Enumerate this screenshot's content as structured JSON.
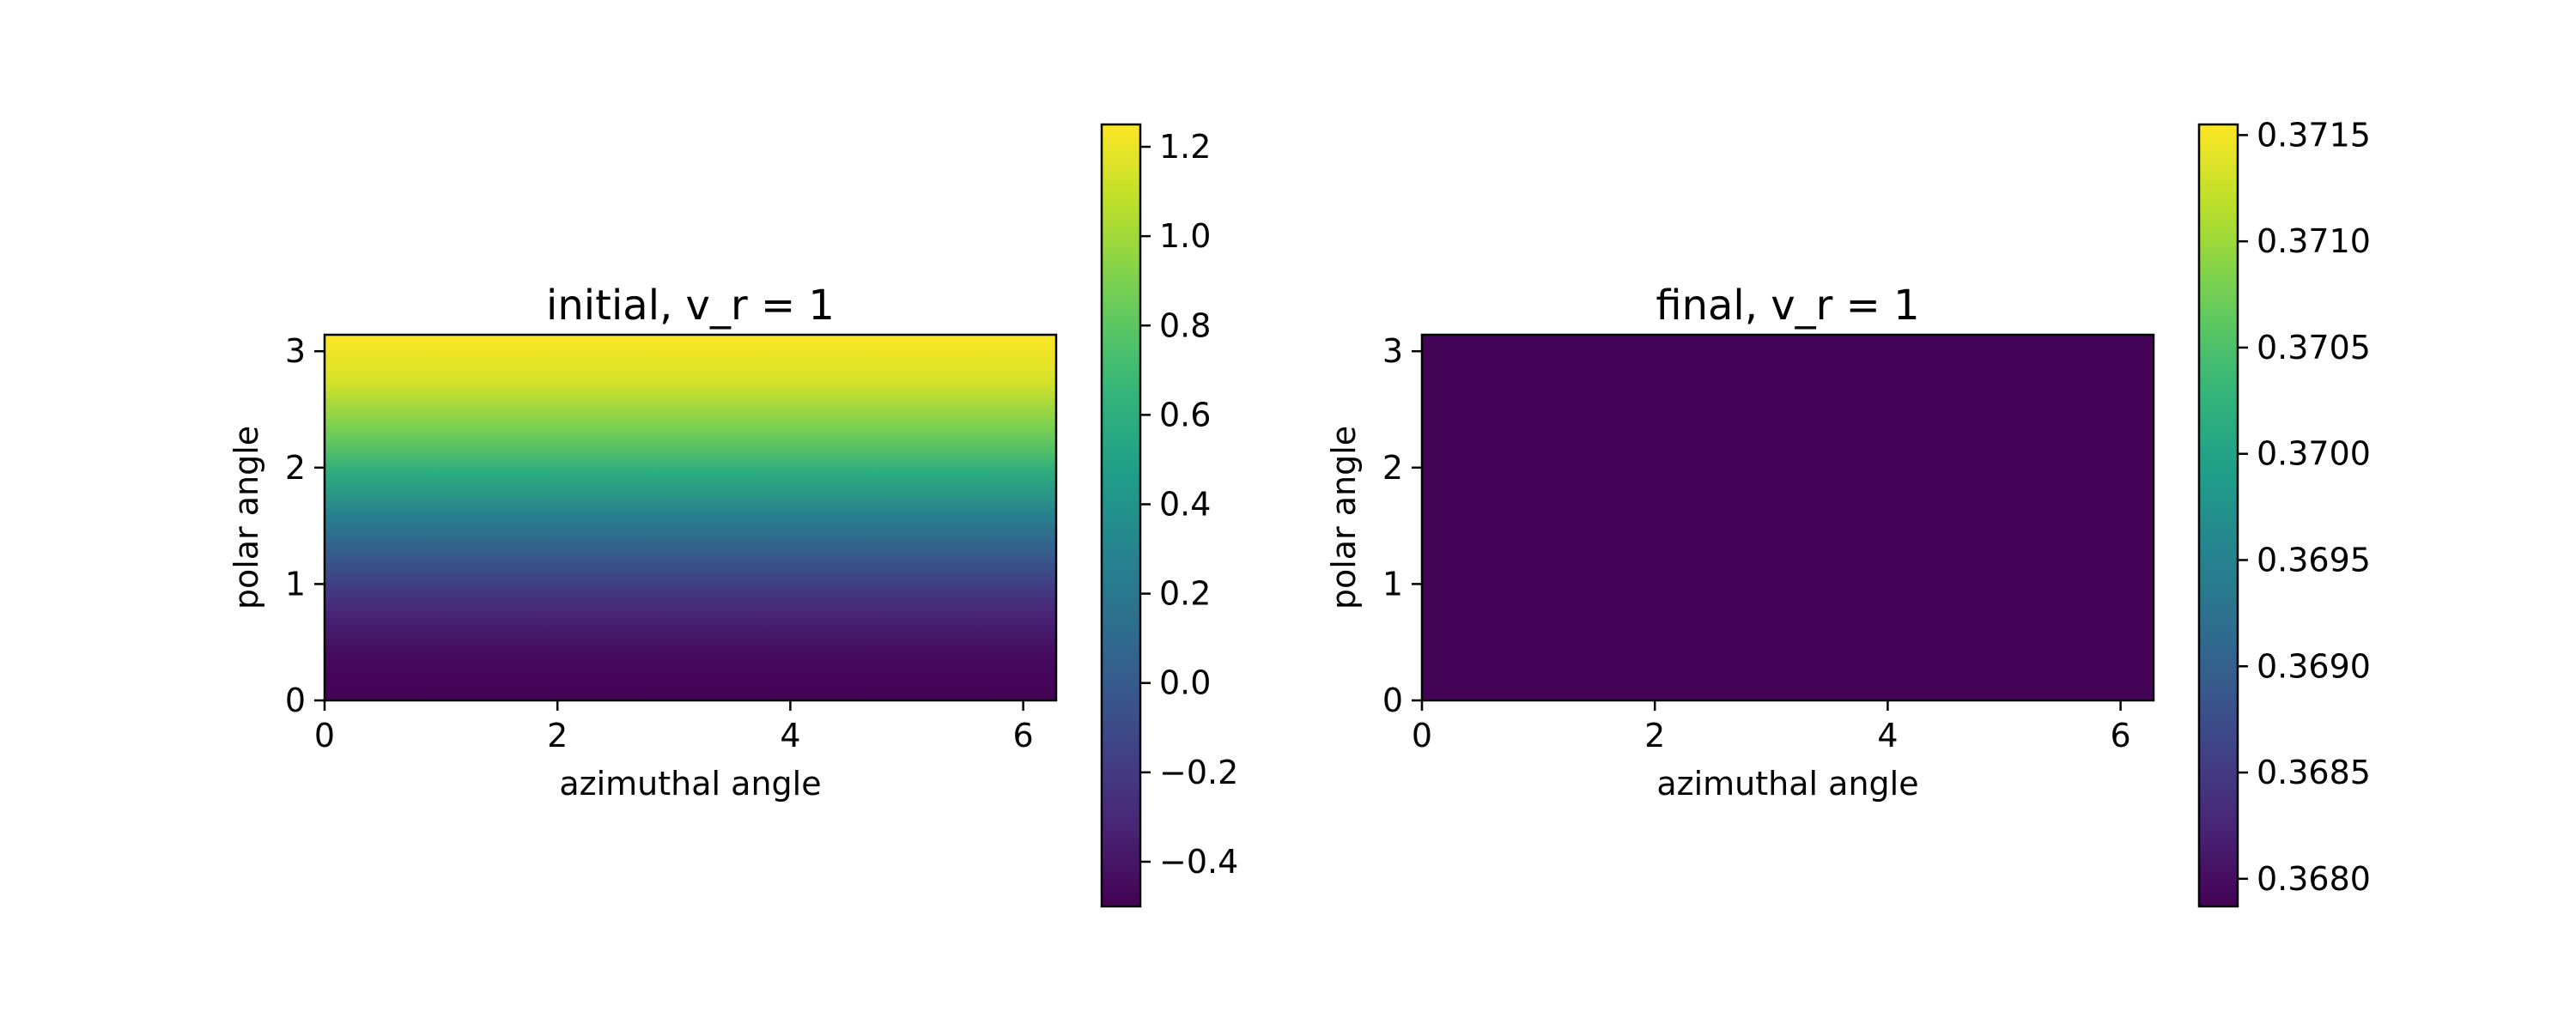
{
  "chart_data": [
    {
      "type": "heatmap",
      "title": "initial, v_r = 1",
      "xlabel": "azimuthal angle",
      "ylabel": "polar angle",
      "xlim": [
        0,
        6.283
      ],
      "ylim": [
        0,
        3.1416
      ],
      "x_ticks": [
        "0",
        "2",
        "4",
        "6"
      ],
      "y_ticks": [
        "0",
        "1",
        "2",
        "3"
      ],
      "colormap": "viridis",
      "field": "varies with polar angle only; rises from about -0.5 at polar angle 0 to about 1.25 at polar angle 3.14",
      "values_by_polar_angle": {
        "polar_angle": [
          0.0,
          0.3927,
          0.7854,
          1.1781,
          1.5708,
          1.9635,
          2.3562,
          2.7489,
          3.1416
        ],
        "value": [
          -0.5,
          -0.45,
          -0.3,
          -0.05,
          0.25,
          0.6,
          0.9,
          1.15,
          1.25
        ]
      },
      "colorbar": {
        "vmin": -0.5,
        "vmax": 1.25,
        "ticks": [
          -0.4,
          -0.2,
          0.0,
          0.2,
          0.4,
          0.6,
          0.8,
          1.0,
          1.2
        ],
        "tick_labels": [
          "−0.4",
          "−0.2",
          "0.0",
          "0.2",
          "0.4",
          "0.6",
          "0.8",
          "1.0",
          "1.2"
        ]
      }
    },
    {
      "type": "heatmap",
      "title": "final, v_r = 1",
      "xlabel": "azimuthal angle",
      "ylabel": "polar angle",
      "xlim": [
        0,
        6.283
      ],
      "ylim": [
        0,
        3.1416
      ],
      "x_ticks": [
        "0",
        "2",
        "4",
        "6"
      ],
      "y_ticks": [
        "0",
        "1",
        "2",
        "3"
      ],
      "colormap": "viridis",
      "field": "uniform, about 0.3679 everywhere",
      "uniform_value": 0.3679,
      "colorbar": {
        "vmin": 0.36787,
        "vmax": 0.37155,
        "ticks": [
          0.368,
          0.3685,
          0.369,
          0.3695,
          0.37,
          0.3705,
          0.371,
          0.3715
        ],
        "tick_labels": [
          "0.3680",
          "0.3685",
          "0.3690",
          "0.3695",
          "0.3700",
          "0.3705",
          "0.3710",
          "0.3715"
        ]
      }
    }
  ]
}
